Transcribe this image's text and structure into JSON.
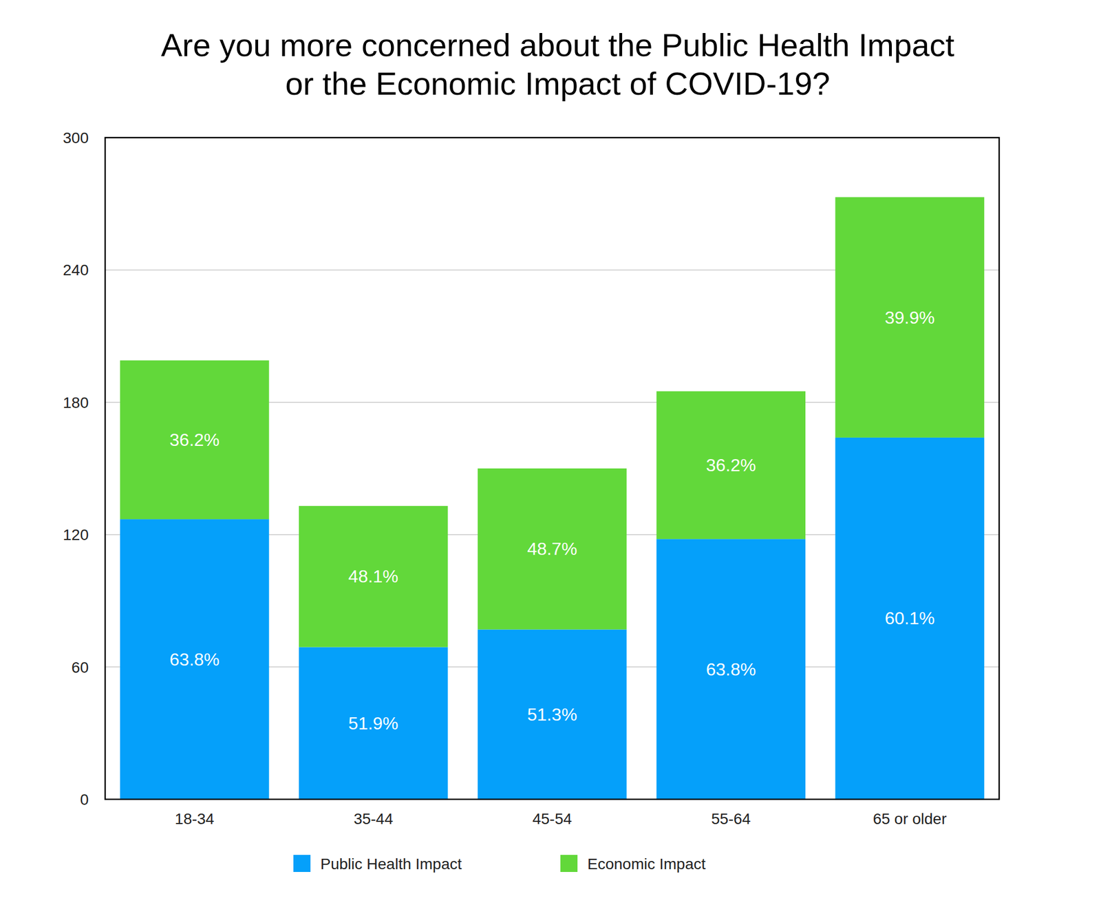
{
  "chart_data": {
    "type": "bar",
    "stacked": true,
    "title": "Are you more concerned about the Public Health Impact\nor the Economic Impact of COVID-19?",
    "categories": [
      "18-34",
      "35-44",
      "45-54",
      "55-64",
      "65 or older"
    ],
    "series": [
      {
        "name": "Public Health Impact",
        "color": "#05a0fa",
        "values": [
          127,
          69,
          77,
          118,
          164
        ],
        "share_labels": [
          "63.8%",
          "51.9%",
          "51.3%",
          "63.8%",
          "60.1%"
        ]
      },
      {
        "name": "Economic Impact",
        "color": "#62d83a",
        "values": [
          72,
          64,
          73,
          67,
          109
        ],
        "share_labels": [
          "36.2%",
          "48.1%",
          "48.7%",
          "36.2%",
          "39.9%"
        ]
      }
    ],
    "ylim": [
      0,
      300
    ],
    "yticks": [
      0,
      60,
      120,
      180,
      240,
      300
    ],
    "grid": true,
    "legend": "bottom"
  }
}
